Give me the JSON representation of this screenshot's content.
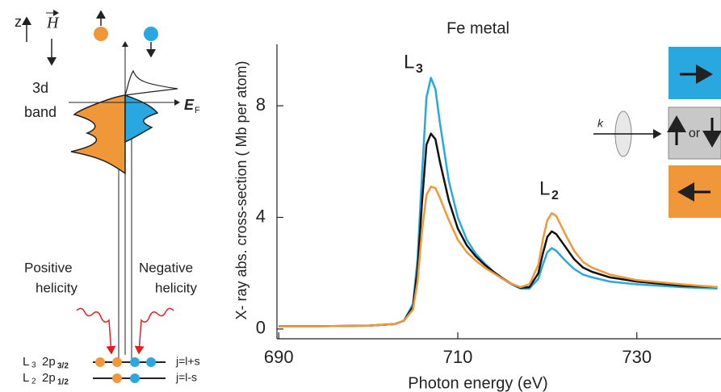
{
  "diagram": {
    "axis_label": "z",
    "field_label": "H",
    "band_label": [
      "3d",
      "band"
    ],
    "fermi_label": {
      "text": "E",
      "sub": "F"
    },
    "positive_label": [
      "Positive",
      "helicity"
    ],
    "negative_label": [
      "Negative",
      "helicity"
    ],
    "levels": [
      {
        "edge": "L",
        "edge_sub": "3",
        "orbital": "2p",
        "orbital_sub": "3/2",
        "j": "j=l+s"
      },
      {
        "edge": "L",
        "edge_sub": "2",
        "orbital": "2p",
        "orbital_sub": "1/2",
        "j": "j=l-s"
      }
    ]
  },
  "chart_data": {
    "type": "line",
    "title": "Fe metal",
    "xlabel": "Photon energy (eV)",
    "ylabel": "X- ray  abs. cross-section ( Mb per atom)",
    "x": [
      690,
      695,
      700,
      703,
      704,
      705,
      705.5,
      706,
      706.5,
      707,
      707.5,
      708,
      709,
      710,
      711,
      712,
      713,
      714,
      715,
      716,
      717,
      718,
      719,
      719.5,
      720,
      720.5,
      721,
      722,
      723,
      724,
      725,
      727,
      730,
      735,
      739
    ],
    "series": [
      {
        "color": "#29a8e0",
        "values": [
          0.1,
          0.1,
          0.12,
          0.18,
          0.3,
          0.9,
          2.5,
          5.5,
          8.3,
          9.0,
          8.6,
          7.4,
          5.3,
          4.0,
          3.2,
          2.7,
          2.35,
          2.05,
          1.8,
          1.6,
          1.45,
          1.45,
          1.8,
          2.3,
          2.75,
          2.9,
          2.8,
          2.45,
          2.15,
          1.95,
          1.85,
          1.7,
          1.6,
          1.5,
          1.45
        ]
      },
      {
        "color": "#111111",
        "values": [
          0.1,
          0.1,
          0.12,
          0.18,
          0.3,
          0.8,
          2.1,
          4.5,
          6.6,
          7.0,
          6.8,
          6.0,
          4.6,
          3.6,
          3.0,
          2.6,
          2.3,
          2.05,
          1.82,
          1.62,
          1.48,
          1.5,
          2.0,
          2.7,
          3.3,
          3.5,
          3.4,
          2.95,
          2.5,
          2.2,
          2.05,
          1.85,
          1.7,
          1.55,
          1.5
        ]
      },
      {
        "color": "#f0973a",
        "values": [
          0.1,
          0.1,
          0.12,
          0.18,
          0.3,
          0.7,
          1.7,
          3.5,
          4.8,
          5.1,
          5.05,
          4.7,
          3.9,
          3.2,
          2.75,
          2.45,
          2.2,
          2.0,
          1.8,
          1.62,
          1.5,
          1.6,
          2.3,
          3.2,
          3.9,
          4.15,
          4.05,
          3.4,
          2.8,
          2.4,
          2.2,
          1.95,
          1.75,
          1.6,
          1.5
        ]
      }
    ],
    "xlim": [
      689.8,
      739.4
    ],
    "ylim": [
      -0.35,
      10.2
    ],
    "xticks": [
      690,
      710,
      730
    ],
    "yticks": [
      0,
      4,
      8
    ],
    "annotations": [
      {
        "text": "L",
        "sub": "3"
      },
      {
        "text": "L",
        "sub": "2"
      }
    ],
    "legend_text": {
      "vector": "k",
      "or": "or"
    }
  }
}
